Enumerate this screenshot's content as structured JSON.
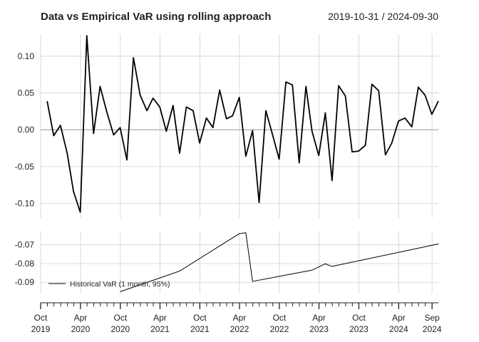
{
  "title": "Data vs Empirical VaR using rolling approach",
  "date_range": "2019-10-31 / 2024-09-30",
  "chart_data": [
    {
      "type": "line",
      "panel": "top",
      "title": "Data vs Empirical VaR using rolling approach",
      "x": [
        "2019-10-31",
        "2019-11-30",
        "2019-12-31",
        "2020-01-31",
        "2020-02-29",
        "2020-03-31",
        "2020-04-30",
        "2020-05-31",
        "2020-06-30",
        "2020-07-31",
        "2020-08-31",
        "2020-09-30",
        "2020-10-31",
        "2020-11-30",
        "2020-12-31",
        "2021-01-31",
        "2021-02-28",
        "2021-03-31",
        "2021-04-30",
        "2021-05-31",
        "2021-06-30",
        "2021-07-31",
        "2021-08-31",
        "2021-09-30",
        "2021-10-31",
        "2021-11-30",
        "2021-12-31",
        "2022-01-31",
        "2022-02-28",
        "2022-03-31",
        "2022-04-30",
        "2022-05-31",
        "2022-06-30",
        "2022-07-31",
        "2022-08-31",
        "2022-09-30",
        "2022-10-31",
        "2022-11-30",
        "2022-12-31",
        "2023-01-31",
        "2023-02-28",
        "2023-03-31",
        "2023-04-30",
        "2023-05-31",
        "2023-06-30",
        "2023-07-31",
        "2023-08-31",
        "2023-09-30",
        "2023-10-31",
        "2023-11-30",
        "2023-12-31",
        "2024-01-31",
        "2024-02-29",
        "2024-03-31",
        "2024-04-30",
        "2024-05-31",
        "2024-06-30",
        "2024-07-31",
        "2024-08-31",
        "2024-09-30"
      ],
      "series": [
        {
          "values": [
            0.039,
            -0.008,
            0.006,
            -0.032,
            -0.084,
            -0.112,
            0.128,
            -0.005,
            0.059,
            0.024,
            -0.007,
            0.003,
            -0.041,
            0.098,
            0.047,
            0.026,
            0.043,
            0.031,
            -0.002,
            0.033,
            -0.032,
            0.031,
            0.026,
            -0.018,
            0.016,
            0.003,
            0.054,
            0.015,
            0.019,
            0.044,
            -0.036,
            -0.001,
            -0.099,
            0.026,
            -0.007,
            -0.04,
            0.065,
            0.061,
            -0.045,
            0.059,
            -0.002,
            -0.035,
            0.023,
            -0.069,
            0.06,
            0.046,
            -0.03,
            -0.029,
            -0.021,
            0.062,
            0.053,
            -0.034,
            -0.018,
            0.012,
            0.016,
            0.004,
            0.058,
            0.047,
            0.021,
            0.039
          ]
        }
      ],
      "ylim": [
        -0.12,
        0.13
      ],
      "yticks": [
        0.1,
        0.05,
        0.0,
        -0.05,
        -0.1
      ],
      "ytick_labels": [
        "0.10",
        "0.05",
        "0.00",
        "-0.05",
        "-0.10"
      ],
      "grid": true
    },
    {
      "type": "line",
      "panel": "bottom",
      "x": [
        "2020-09-30",
        "2021-06-30",
        "2022-03-31",
        "2022-04-30",
        "2022-05-31",
        "2023-02-28",
        "2023-04-30",
        "2023-05-31",
        "2024-09-30"
      ],
      "series": [
        {
          "name": "Historical VaR (1 month, 95%)",
          "values": [
            -0.095,
            -0.084,
            -0.064,
            -0.0635,
            -0.0895,
            -0.0835,
            -0.0801,
            -0.0815,
            -0.0695
          ]
        }
      ],
      "ylim": [
        -0.096,
        -0.0625
      ],
      "yticks": [
        -0.07,
        -0.08,
        -0.09
      ],
      "ytick_labels": [
        "-0.07",
        "-0.08",
        "-0.09"
      ],
      "legend": "bottom-left",
      "grid": true
    }
  ],
  "x_axis": {
    "ticks": [
      {
        "date": "2019-10-01",
        "month": "Oct",
        "year": "2019"
      },
      {
        "date": "2020-04-01",
        "month": "Apr",
        "year": "2020"
      },
      {
        "date": "2020-10-01",
        "month": "Oct",
        "year": "2020"
      },
      {
        "date": "2021-04-01",
        "month": "Apr",
        "year": "2021"
      },
      {
        "date": "2021-10-01",
        "month": "Oct",
        "year": "2021"
      },
      {
        "date": "2022-04-01",
        "month": "Apr",
        "year": "2022"
      },
      {
        "date": "2022-10-01",
        "month": "Oct",
        "year": "2022"
      },
      {
        "date": "2023-04-01",
        "month": "Apr",
        "year": "2023"
      },
      {
        "date": "2023-10-01",
        "month": "Oct",
        "year": "2023"
      },
      {
        "date": "2024-04-01",
        "month": "Apr",
        "year": "2024"
      },
      {
        "date": "2024-09-01",
        "month": "Sep",
        "year": "2024"
      }
    ]
  },
  "colors": {
    "line": "#000000",
    "grid": "#d0d0d0",
    "zero_line": "#a8a8a8",
    "text": "#222222"
  }
}
